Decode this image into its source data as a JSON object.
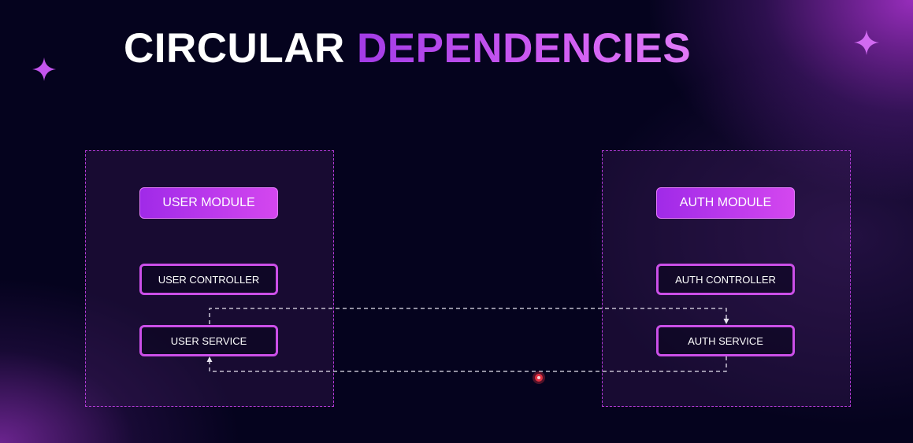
{
  "title": {
    "part1": "CIRCULAR",
    "part2": "DEPENDENCIES"
  },
  "modules": {
    "user": {
      "header": "USER MODULE",
      "controller": "USER CONTROLLER",
      "service": "USER SERVICE"
    },
    "auth": {
      "header": "AUTH MODULE",
      "controller": "AUTH CONTROLLER",
      "service": "AUTH SERVICE"
    }
  },
  "colors": {
    "background": "#05031e",
    "accent": "#c94ff0",
    "border": "#b43bd8",
    "cursor": "#e03040"
  }
}
